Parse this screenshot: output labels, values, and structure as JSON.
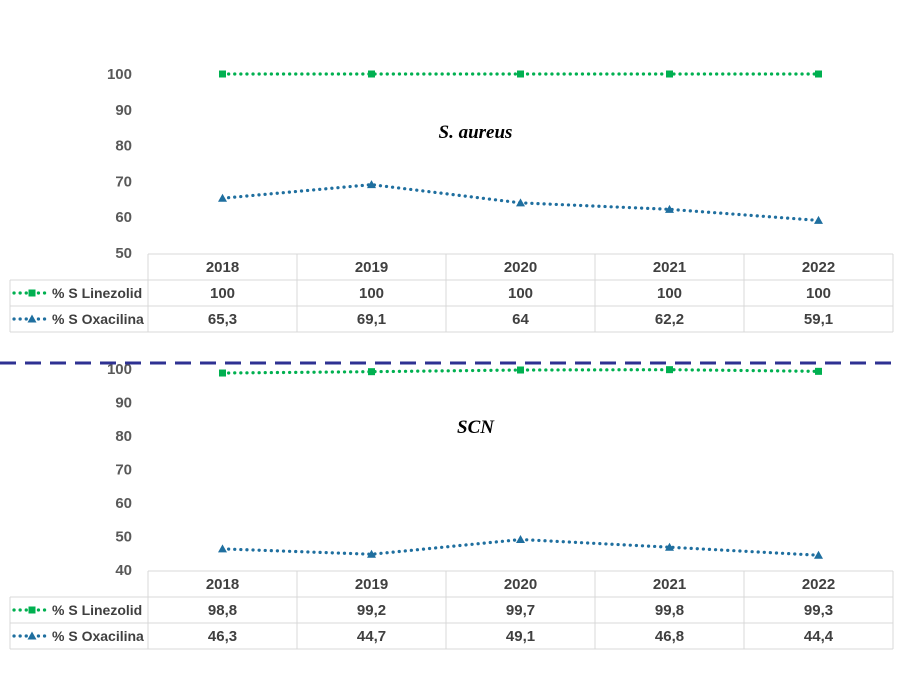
{
  "colors": {
    "linezolid": "#00b050",
    "oxacilina": "#1f6f9f",
    "divider": "#2e3192",
    "tick": "#595959",
    "grid": "#d9d9d9"
  },
  "chart_data": [
    {
      "type": "line",
      "title": "S. aureus",
      "categories": [
        "2018",
        "2019",
        "2020",
        "2021",
        "2022"
      ],
      "y_ticks": [
        "100",
        "90",
        "80",
        "70",
        "60",
        "50"
      ],
      "ylim": [
        50,
        100
      ],
      "grid": false,
      "legend": "data-table",
      "series": [
        {
          "name": "% S Linezolid",
          "values": [
            100,
            100,
            100,
            100,
            100
          ],
          "labels": [
            "100",
            "100",
            "100",
            "100",
            "100"
          ],
          "marker": "square",
          "line": "dotted"
        },
        {
          "name": "% S Oxacilina",
          "values": [
            65.3,
            69.1,
            64,
            62.2,
            59.1
          ],
          "labels": [
            "65,3",
            "69,1",
            "64",
            "62,2",
            "59,1"
          ],
          "marker": "triangle",
          "line": "dotted"
        }
      ]
    },
    {
      "type": "line",
      "title": "SCN",
      "categories": [
        "2018",
        "2019",
        "2020",
        "2021",
        "2022"
      ],
      "y_ticks": [
        "100",
        "90",
        "80",
        "70",
        "60",
        "50",
        "40"
      ],
      "ylim": [
        40,
        100
      ],
      "grid": false,
      "legend": "data-table",
      "series": [
        {
          "name": "% S Linezolid",
          "values": [
            98.8,
            99.2,
            99.7,
            99.8,
            99.3
          ],
          "labels": [
            "98,8",
            "99,2",
            "99,7",
            "99,8",
            "99,3"
          ],
          "marker": "square",
          "line": "dotted"
        },
        {
          "name": "% S Oxacilina",
          "values": [
            46.3,
            44.7,
            49.1,
            46.8,
            44.4
          ],
          "labels": [
            "46,3",
            "44,7",
            "49,1",
            "46,8",
            "44,4"
          ],
          "marker": "triangle",
          "line": "dotted"
        }
      ]
    }
  ]
}
